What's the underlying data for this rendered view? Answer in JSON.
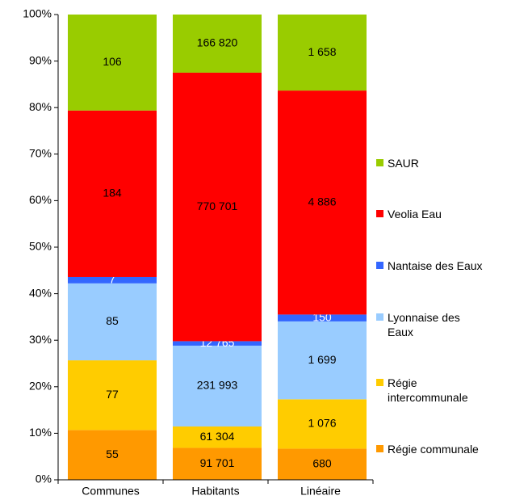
{
  "chart_data": {
    "type": "bar",
    "stacking": "percent",
    "categories": [
      "Communes",
      "Habitants",
      "Linéaire"
    ],
    "series": [
      {
        "name": "Régie communale",
        "color": "#ff9900",
        "label_color": "#000000",
        "values": [
          55,
          91701,
          680
        ],
        "value_labels": [
          "55",
          "91 701",
          "680"
        ]
      },
      {
        "name": "Régie\nintercommunale",
        "color": "#ffcc00",
        "label_color": "#000000",
        "values": [
          77,
          61304,
          1076
        ],
        "value_labels": [
          "77",
          "61 304",
          "1 076"
        ]
      },
      {
        "name": "Lyonnaise des\nEaux",
        "color": "#99ccff",
        "label_color": "#000000",
        "values": [
          85,
          231993,
          1699
        ],
        "value_labels": [
          "85",
          "231 993",
          "1 699"
        ]
      },
      {
        "name": "Nantaise des Eaux",
        "color": "#3366ff",
        "label_color": "#ffffff",
        "values": [
          7,
          12765,
          150
        ],
        "value_labels": [
          "7",
          "12 765",
          "150"
        ]
      },
      {
        "name": "Veolia Eau",
        "color": "#ff0000",
        "label_color": "#000000",
        "values": [
          184,
          770701,
          4886
        ],
        "value_labels": [
          "184",
          "770 701",
          "4 886"
        ]
      },
      {
        "name": "SAUR",
        "color": "#99cc00",
        "label_color": "#000000",
        "values": [
          106,
          166820,
          1658
        ],
        "value_labels": [
          "106",
          "166 820",
          "1 658"
        ]
      }
    ],
    "ylim": [
      0,
      100
    ],
    "yticks": [
      {
        "value": 0,
        "label": "0%"
      },
      {
        "value": 10,
        "label": "10%"
      },
      {
        "value": 20,
        "label": "20%"
      },
      {
        "value": 30,
        "label": "30%"
      },
      {
        "value": 40,
        "label": "40%"
      },
      {
        "value": 50,
        "label": "50%"
      },
      {
        "value": 60,
        "label": "60%"
      },
      {
        "value": 70,
        "label": "70%"
      },
      {
        "value": 80,
        "label": "80%"
      },
      {
        "value": 90,
        "label": "90%"
      },
      {
        "value": 100,
        "label": "100%"
      }
    ],
    "legend": "right"
  }
}
